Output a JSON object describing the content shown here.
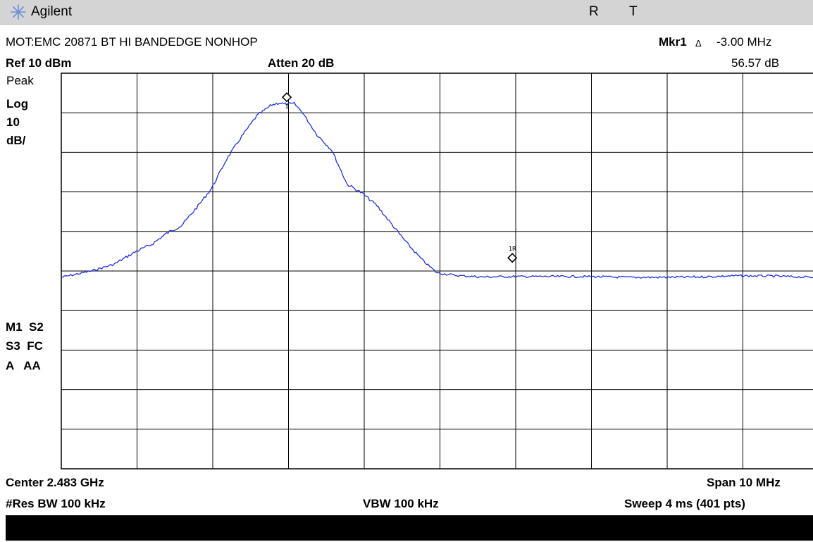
{
  "titlebar": {
    "brand": "Agilent",
    "state_r": "R",
    "state_t": "T"
  },
  "header": {
    "trace_title": "MOT:EMC 20871 BT HI BANDEDGE NONHOP",
    "ref_level": "Ref 10 dBm",
    "attenuation": "Atten 20 dB",
    "marker_label": "Mkr1",
    "marker_delta_symbol": "Δ",
    "marker_freq": "-3.00 MHz",
    "marker_value": "56.57 dB"
  },
  "left_panel": {
    "detector": "Peak",
    "scale_type": "Log",
    "scale_value": "10",
    "scale_unit": "dB/",
    "status_line1": "M1  S2",
    "status_line2": "S3  FC",
    "status_line3": "A   AA"
  },
  "footer": {
    "center": "Center 2.483 GHz",
    "span": "Span 10 MHz",
    "res_bw": "#Res BW 100 kHz",
    "vbw": "VBW 100 kHz",
    "sweep": "Sweep 4 ms (401 pts)"
  },
  "markers": {
    "marker1": "1",
    "marker1_ref": "1R"
  },
  "colors": {
    "trace": "#1f2ee6",
    "grid": "#000000",
    "titlebar": "#d4d4d4"
  },
  "chart_data": {
    "type": "line",
    "x_divisions": 10,
    "y_divisions": 10,
    "ylim": [
      -90,
      10
    ],
    "x_range_mhz": [
      -5,
      5
    ],
    "series": [
      {
        "points": [
          [
            -5.0,
            -41.6
          ],
          [
            -4.6,
            -40.0
          ],
          [
            -4.3,
            -38.3
          ],
          [
            -4.0,
            -35.0
          ],
          [
            -3.8,
            -33.3
          ],
          [
            -3.6,
            -30.5
          ],
          [
            -3.4,
            -28.5
          ],
          [
            -3.2,
            -24.0
          ],
          [
            -3.0,
            -19.1
          ],
          [
            -2.8,
            -11.7
          ],
          [
            -2.6,
            -6.0
          ],
          [
            -2.4,
            -0.8
          ],
          [
            -2.2,
            2.0
          ],
          [
            -2.1,
            2.5
          ],
          [
            -2.0,
            2.1
          ],
          [
            -1.9,
            2.3
          ],
          [
            -1.8,
            0.3
          ],
          [
            -1.6,
            -5.5
          ],
          [
            -1.4,
            -9.5
          ],
          [
            -1.2,
            -18.0
          ],
          [
            -1.0,
            -20.3
          ],
          [
            -0.8,
            -23.5
          ],
          [
            -0.6,
            -28.3
          ],
          [
            -0.4,
            -33.0
          ],
          [
            -0.2,
            -37.2
          ],
          [
            0.0,
            -40.5
          ],
          [
            0.3,
            -41.2
          ],
          [
            0.6,
            -41.5
          ],
          [
            1.0,
            -41.4
          ],
          [
            1.5,
            -41.4
          ],
          [
            2.0,
            -41.4
          ],
          [
            2.5,
            -41.6
          ],
          [
            3.0,
            -41.6
          ],
          [
            3.5,
            -41.5
          ],
          [
            4.0,
            -41.2
          ],
          [
            4.5,
            -41.3
          ],
          [
            5.0,
            -41.6
          ]
        ]
      }
    ],
    "marker_points": [
      {
        "label": "1",
        "x": -2.0,
        "y": 2.5
      },
      {
        "label": "1R",
        "x": 1.0,
        "y": -38.1
      }
    ]
  }
}
